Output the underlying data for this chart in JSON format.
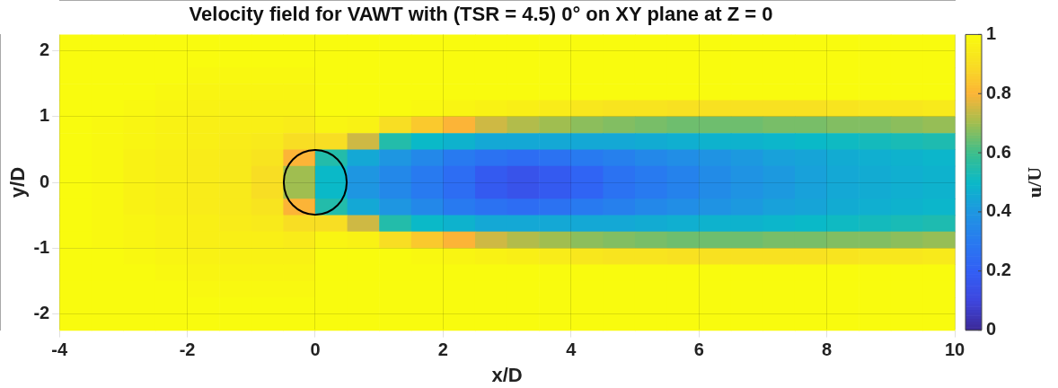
{
  "chart_data": {
    "type": "heatmap",
    "title": "Velocity field for VAWT with (TSR = 4.5) 0° on XY plane at Z = 0",
    "xlabel": "x/D",
    "ylabel": "y/D",
    "clabel": "u/U",
    "x": [
      -3.75,
      -3.25,
      -2.75,
      -2.25,
      -1.75,
      -1.25,
      -0.75,
      -0.25,
      0.25,
      0.75,
      1.25,
      1.75,
      2.25,
      2.75,
      3.25,
      3.75,
      4.25,
      4.75,
      5.25,
      5.75,
      6.25,
      6.75,
      7.25,
      7.75,
      8.25,
      8.75,
      9.25,
      9.75
    ],
    "xlim": [
      -4,
      10
    ],
    "xticks": [
      -4,
      -2,
      0,
      2,
      4,
      6,
      8,
      10
    ],
    "ylim": [
      -2.25,
      2.25
    ],
    "yticks": [
      -2,
      -1,
      0,
      1,
      2
    ],
    "clim": [
      0,
      1
    ],
    "cticks": [
      0,
      0.2,
      0.4,
      0.6,
      0.8,
      1
    ],
    "grid": true,
    "cells": [
      [
        1,
        1,
        1,
        1,
        1,
        1,
        1,
        1,
        1,
        1,
        1,
        1,
        1,
        1,
        1,
        1,
        1,
        1,
        1,
        1,
        1,
        1,
        1,
        1,
        1,
        1,
        1,
        1
      ],
      [
        1,
        1,
        1,
        1,
        1,
        1,
        1,
        1,
        1,
        1,
        1,
        1,
        1,
        1,
        1,
        1,
        1,
        1,
        1,
        1,
        1,
        1,
        1,
        1,
        1,
        1,
        1,
        1
      ],
      [
        1,
        1,
        1,
        1,
        0.99,
        0.99,
        0.99,
        0.99,
        1,
        1,
        1,
        1,
        1,
        1,
        1,
        1,
        1,
        1,
        1,
        1,
        1,
        1,
        1,
        1,
        1,
        1,
        1,
        1
      ],
      [
        1,
        1,
        1,
        0.99,
        0.98,
        0.98,
        0.98,
        0.98,
        1,
        1,
        1,
        1,
        1,
        1,
        1,
        1,
        1,
        1,
        1,
        1,
        1,
        1,
        1,
        1,
        1,
        1,
        1,
        1
      ],
      [
        1,
        1,
        0.99,
        0.98,
        0.97,
        0.97,
        0.97,
        0.97,
        1,
        1,
        1,
        0.99,
        0.98,
        0.97,
        0.96,
        0.95,
        0.93,
        0.92,
        0.92,
        0.91,
        0.91,
        0.91,
        0.91,
        0.91,
        0.92,
        0.93,
        0.93,
        0.94
      ],
      [
        1,
        0.99,
        0.98,
        0.97,
        0.96,
        0.96,
        0.96,
        0.95,
        0.98,
        0.97,
        0.9,
        0.85,
        0.8,
        0.75,
        0.72,
        0.7,
        0.68,
        0.67,
        0.66,
        0.65,
        0.65,
        0.65,
        0.66,
        0.66,
        0.67,
        0.67,
        0.68,
        0.69
      ],
      [
        1,
        0.99,
        0.98,
        0.97,
        0.96,
        0.95,
        0.94,
        0.9,
        0.9,
        0.75,
        0.55,
        0.5,
        0.48,
        0.45,
        0.45,
        0.45,
        0.45,
        0.45,
        0.46,
        0.47,
        0.48,
        0.48,
        0.49,
        0.5,
        0.51,
        0.52,
        0.53,
        0.54
      ],
      [
        1,
        0.99,
        0.97,
        0.96,
        0.95,
        0.94,
        0.92,
        0.8,
        0.55,
        0.45,
        0.4,
        0.35,
        0.3,
        0.27,
        0.25,
        0.27,
        0.3,
        0.32,
        0.35,
        0.37,
        0.39,
        0.41,
        0.43,
        0.44,
        0.46,
        0.47,
        0.48,
        0.49
      ],
      [
        1,
        0.99,
        0.97,
        0.96,
        0.95,
        0.94,
        0.9,
        0.7,
        0.5,
        0.4,
        0.35,
        0.3,
        0.25,
        0.18,
        0.15,
        0.18,
        0.22,
        0.27,
        0.3,
        0.33,
        0.36,
        0.39,
        0.41,
        0.43,
        0.45,
        0.46,
        0.47,
        0.48
      ],
      [
        1,
        0.99,
        0.97,
        0.96,
        0.95,
        0.94,
        0.9,
        0.7,
        0.5,
        0.4,
        0.35,
        0.3,
        0.25,
        0.18,
        0.15,
        0.18,
        0.22,
        0.27,
        0.3,
        0.33,
        0.36,
        0.39,
        0.41,
        0.43,
        0.45,
        0.46,
        0.47,
        0.48
      ],
      [
        1,
        0.99,
        0.97,
        0.96,
        0.95,
        0.94,
        0.92,
        0.8,
        0.55,
        0.45,
        0.4,
        0.35,
        0.3,
        0.27,
        0.25,
        0.27,
        0.3,
        0.32,
        0.35,
        0.37,
        0.39,
        0.41,
        0.43,
        0.44,
        0.46,
        0.47,
        0.48,
        0.49
      ],
      [
        1,
        0.99,
        0.98,
        0.97,
        0.96,
        0.95,
        0.94,
        0.9,
        0.9,
        0.75,
        0.55,
        0.5,
        0.48,
        0.45,
        0.45,
        0.45,
        0.45,
        0.45,
        0.46,
        0.47,
        0.48,
        0.48,
        0.49,
        0.5,
        0.51,
        0.52,
        0.53,
        0.54
      ],
      [
        1,
        0.99,
        0.98,
        0.97,
        0.96,
        0.96,
        0.96,
        0.95,
        0.98,
        0.97,
        0.9,
        0.85,
        0.8,
        0.75,
        0.72,
        0.7,
        0.68,
        0.67,
        0.66,
        0.65,
        0.65,
        0.65,
        0.66,
        0.66,
        0.67,
        0.67,
        0.68,
        0.69
      ],
      [
        1,
        1,
        0.99,
        0.98,
        0.97,
        0.97,
        0.97,
        0.97,
        1,
        1,
        1,
        0.99,
        0.98,
        0.97,
        0.96,
        0.95,
        0.93,
        0.92,
        0.92,
        0.91,
        0.91,
        0.91,
        0.91,
        0.91,
        0.92,
        0.93,
        0.93,
        0.94
      ],
      [
        1,
        1,
        1,
        0.99,
        0.98,
        0.98,
        0.98,
        0.98,
        1,
        1,
        1,
        1,
        1,
        1,
        1,
        1,
        1,
        1,
        1,
        1,
        1,
        1,
        1,
        1,
        1,
        1,
        1,
        1
      ],
      [
        1,
        1,
        1,
        1,
        0.99,
        0.99,
        0.99,
        0.99,
        1,
        1,
        1,
        1,
        1,
        1,
        1,
        1,
        1,
        1,
        1,
        1,
        1,
        1,
        1,
        1,
        1,
        1,
        1,
        1
      ],
      [
        1,
        1,
        1,
        1,
        1,
        1,
        1,
        1,
        1,
        1,
        1,
        1,
        1,
        1,
        1,
        1,
        1,
        1,
        1,
        1,
        1,
        1,
        1,
        1,
        1,
        1,
        1,
        1
      ],
      [
        1,
        1,
        1,
        1,
        1,
        1,
        1,
        1,
        1,
        1,
        1,
        1,
        1,
        1,
        1,
        1,
        1,
        1,
        1,
        1,
        1,
        1,
        1,
        1,
        1,
        1,
        1,
        1
      ]
    ]
  }
}
